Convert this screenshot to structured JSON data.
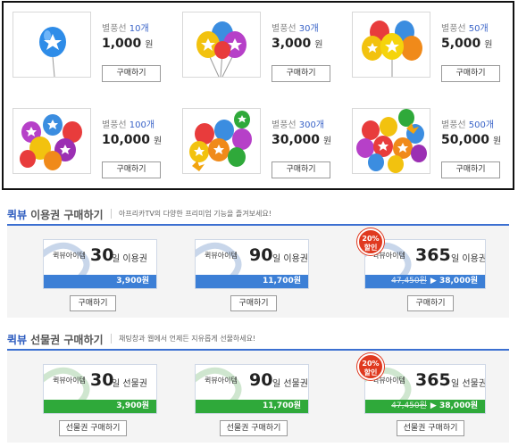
{
  "balloons": [
    {
      "name": "별풍선 ",
      "count": "10",
      "unit": "개",
      "price": "1,000",
      "won": "원",
      "buy": "구매하기"
    },
    {
      "name": "별풍선 ",
      "count": "30",
      "unit": "개",
      "price": "3,000",
      "won": "원",
      "buy": "구매하기"
    },
    {
      "name": "별풍선 ",
      "count": "50",
      "unit": "개",
      "price": "5,000",
      "won": "원",
      "buy": "구매하기"
    },
    {
      "name": "별풍선 ",
      "count": "100",
      "unit": "개",
      "price": "10,000",
      "won": "원",
      "buy": "구매하기"
    },
    {
      "name": "별풍선 ",
      "count": "300",
      "unit": "개",
      "price": "30,000",
      "won": "원",
      "buy": "구매하기"
    },
    {
      "name": "별풍선 ",
      "count": "500",
      "unit": "개",
      "price": "50,000",
      "won": "원",
      "buy": "구매하기"
    }
  ],
  "usage": {
    "brand": "퀵뷰",
    "title": "이용권 구매하기",
    "desc": "아프리카TV의 다양한 프리미엄 기능을 즐겨보세요!",
    "items": [
      {
        "label": "퀵뷰아이템",
        "days": "30",
        "suffix": "일 이용권",
        "price": "3,900원",
        "buy": "구매하기"
      },
      {
        "label": "퀵뷰아이템",
        "days": "90",
        "suffix": "일 이용권",
        "price": "11,700원",
        "buy": "구매하기"
      },
      {
        "label": "퀵뷰아이템",
        "days": "365",
        "suffix": "일 이용권",
        "old_price": "47,450원",
        "arrow": "▶",
        "price": "38,000원",
        "badge_pct": "20%",
        "badge_text": "할인",
        "buy": "구매하기"
      }
    ]
  },
  "gift": {
    "brand": "퀵뷰",
    "title": "선물권 구매하기",
    "desc": "채팅창과 웹에서 언제든 지유롭게 선물하세요!",
    "items": [
      {
        "label": "퀵뷰아이템",
        "days": "30",
        "suffix": "일 선물권",
        "price": "3,900원",
        "buy": "선물권 구매하기"
      },
      {
        "label": "퀵뷰아이템",
        "days": "90",
        "suffix": "일 선물권",
        "price": "11,700원",
        "buy": "선물권 구매하기"
      },
      {
        "label": "퀵뷰아이템",
        "days": "365",
        "suffix": "일 선물권",
        "old_price": "47,450원",
        "arrow": "▶",
        "price": "38,000원",
        "badge_pct": "20%",
        "badge_text": "할인",
        "buy": "선물권 구매하기"
      }
    ]
  },
  "colors": {
    "brand_blue": "#2c5bbf",
    "usage_strip": "#3c7fd6",
    "gift_strip": "#2fa93a",
    "discount_badge": "#e0391f"
  }
}
